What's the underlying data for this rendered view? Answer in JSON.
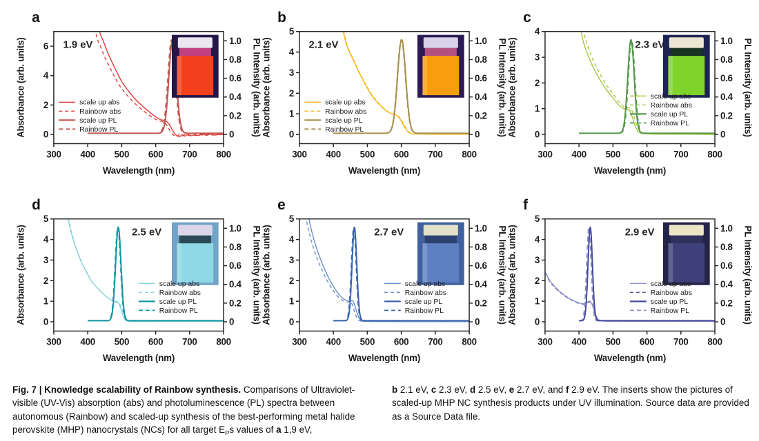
{
  "figure": {
    "axis": {
      "xlabel": "Wavelength (nm)",
      "ylabel_left": "Absorbance (arb. units)",
      "ylabel_right": "PL Intensity (arb. units)",
      "x_ticks": [
        300,
        400,
        500,
        600,
        700,
        800
      ],
      "x_range": [
        300,
        800
      ],
      "right_ticks": [
        "0",
        "0.2",
        "0.4",
        "0.6",
        "0.8",
        "1.0"
      ],
      "right_axis_max": 1.1
    },
    "legend_labels": [
      "scale up abs",
      "Rainbow abs",
      "scale up PL",
      "Rainbow PL"
    ],
    "legend_presets": {
      "lower-left": {
        "x": 0.03,
        "rows": [
          0.63,
          0.71,
          0.79,
          0.87
        ]
      },
      "mid-right": {
        "x": 0.5,
        "rows": [
          0.575,
          0.655,
          0.735,
          0.815
        ]
      }
    }
  },
  "chart_data": [
    {
      "panel": "a",
      "type": "line",
      "energy_label": "1.9 eV",
      "energy_x": 0.055,
      "legend_pos": "lower-left",
      "ymax_left": 7,
      "left_ticks": [
        0,
        2,
        4,
        6
      ],
      "series_names": [
        "scale up abs",
        "Rainbow abs",
        "scale up PL",
        "Rainbow PL"
      ],
      "pl_peak_nm": 650,
      "pl_sigma_nm": 11,
      "pl_amp": 1.0,
      "rainbow_pl_shift_nm": -3,
      "abs_points": [
        [
          400,
          13
        ],
        [
          420,
          9.5
        ],
        [
          433,
          7.2
        ],
        [
          445,
          6.4
        ],
        [
          460,
          5.5
        ],
        [
          480,
          4.5
        ],
        [
          500,
          3.6
        ],
        [
          520,
          2.95
        ],
        [
          540,
          2.4
        ],
        [
          560,
          1.95
        ],
        [
          580,
          1.55
        ],
        [
          600,
          1.2
        ],
        [
          615,
          1.0
        ],
        [
          628,
          0.93
        ],
        [
          638,
          0.75
        ],
        [
          648,
          0.35
        ],
        [
          656,
          0.05
        ],
        [
          665,
          -0.12
        ],
        [
          672,
          -0.14
        ],
        [
          678,
          -0.02
        ],
        [
          686,
          -0.12
        ],
        [
          695,
          -0.01
        ],
        [
          705,
          -0.09
        ],
        [
          715,
          -0.01
        ],
        [
          725,
          -0.08
        ],
        [
          738,
          0.01
        ],
        [
          750,
          -0.06
        ],
        [
          762,
          0.02
        ],
        [
          775,
          -0.05
        ],
        [
          788,
          0.02
        ],
        [
          800,
          -0.03
        ]
      ],
      "rainbow_abs": {
        "dx": -8,
        "scale": 0.94
      },
      "colors": {
        "abs": "#df3a36",
        "pl": "#c4564f"
      },
      "vial": {
        "bg": "#241645",
        "cap": "#eae7f0",
        "neck": "#c23f80",
        "liquid": "#f2411c"
      }
    },
    {
      "panel": "b",
      "type": "line",
      "energy_label": "2.1 eV",
      "energy_x": 0.055,
      "legend_pos": "lower-left",
      "ymax_left": 5,
      "left_ticks": [
        0,
        1,
        2,
        3,
        4,
        5
      ],
      "series_names": [
        "scale up abs",
        "Rainbow abs",
        "scale up PL",
        "Rainbow PL"
      ],
      "pl_peak_nm": 601,
      "pl_sigma_nm": 12,
      "pl_amp": 1.0,
      "rainbow_pl_shift_nm": -1,
      "abs_points": [
        [
          400,
          9
        ],
        [
          415,
          6.5
        ],
        [
          428,
          5.1
        ],
        [
          440,
          4.3
        ],
        [
          455,
          3.75
        ],
        [
          470,
          3.2
        ],
        [
          485,
          2.7
        ],
        [
          500,
          2.25
        ],
        [
          515,
          1.85
        ],
        [
          530,
          1.55
        ],
        [
          545,
          1.3
        ],
        [
          558,
          1.12
        ],
        [
          570,
          1.02
        ],
        [
          582,
          0.96
        ],
        [
          592,
          0.85
        ],
        [
          600,
          0.65
        ],
        [
          610,
          0.35
        ],
        [
          620,
          0.12
        ],
        [
          630,
          0.04
        ],
        [
          650,
          0.02
        ],
        [
          700,
          0.01
        ],
        [
          800,
          0.01
        ]
      ],
      "rainbow_abs": {
        "dx": 2,
        "scale": 0.99
      },
      "colors": {
        "abs": "#f5b60f",
        "pl": "#a7904e"
      },
      "vial": {
        "bg": "#2c1a55",
        "cap": "#d8d1e8",
        "neck": "#b2517f",
        "liquid": "#f89d0c"
      }
    },
    {
      "panel": "c",
      "type": "line",
      "energy_label": "2.3 eV",
      "energy_x": 0.53,
      "legend_pos": "mid-right",
      "ymax_left": 4,
      "left_ticks": [
        0,
        1,
        2,
        3,
        4
      ],
      "series_names": [
        "scale up abs",
        "Rainbow abs",
        "scale up PL",
        "Rainbow PL"
      ],
      "pl_peak_nm": 553,
      "pl_sigma_nm": 9.5,
      "pl_amp": 1.0,
      "rainbow_pl_shift_nm": 2,
      "abs_points": [
        [
          400,
          4.6
        ],
        [
          410,
          3.75
        ],
        [
          420,
          3.3
        ],
        [
          435,
          2.8
        ],
        [
          450,
          2.4
        ],
        [
          465,
          2.05
        ],
        [
          480,
          1.75
        ],
        [
          495,
          1.5
        ],
        [
          510,
          1.25
        ],
        [
          522,
          1.08
        ],
        [
          532,
          1.0
        ],
        [
          542,
          0.99
        ],
        [
          550,
          0.9
        ],
        [
          558,
          0.62
        ],
        [
          566,
          0.3
        ],
        [
          574,
          0.12
        ],
        [
          582,
          0.05
        ],
        [
          600,
          0.02
        ],
        [
          700,
          0.01
        ],
        [
          800,
          0.0
        ]
      ],
      "rainbow_abs": {
        "dx": 5,
        "scale": 1.05
      },
      "colors": {
        "abs": "#a4c43e",
        "pl": "#55984c"
      },
      "vial": {
        "bg": "#1e2452",
        "cap": "#ece6d3",
        "neck": "#173321",
        "liquid": "#7fd32b"
      }
    },
    {
      "panel": "d",
      "type": "line",
      "energy_label": "2.5 eV",
      "energy_x": 0.46,
      "legend_pos": "mid-right",
      "ymax_left": 5,
      "left_ticks": [
        0,
        1,
        2,
        3,
        4,
        5
      ],
      "series_names": [
        "scale up abs",
        "Rainbow abs",
        "scale up PL",
        "Rainbow PL"
      ],
      "pl_peak_nm": 490,
      "pl_sigma_nm": 8,
      "pl_amp": 1.0,
      "rainbow_pl_shift_nm": -1.5,
      "abs_points": [
        [
          330,
          6.5
        ],
        [
          340,
          5.2
        ],
        [
          352,
          4.3
        ],
        [
          365,
          3.6
        ],
        [
          380,
          2.95
        ],
        [
          395,
          2.45
        ],
        [
          410,
          2.0
        ],
        [
          425,
          1.7
        ],
        [
          440,
          1.45
        ],
        [
          455,
          1.22
        ],
        [
          468,
          1.08
        ],
        [
          478,
          1.0
        ],
        [
          487,
          0.98
        ],
        [
          495,
          0.75
        ],
        [
          503,
          0.35
        ],
        [
          510,
          0.12
        ],
        [
          518,
          0.04
        ],
        [
          540,
          0.02
        ],
        [
          600,
          0.02
        ],
        [
          700,
          0.02
        ],
        [
          800,
          0.02
        ]
      ],
      "rainbow_abs": {
        "dx": 4,
        "scale": 0.96
      },
      "colors": {
        "abs": "#8bd3db",
        "pl": "#0f98a1"
      },
      "vial": {
        "bg": "#70a3c6",
        "cap": "#dcd5ea",
        "neck": "#2a4a57",
        "liquid": "#8ed9e5"
      }
    },
    {
      "panel": "e",
      "type": "line",
      "energy_label": "2.7 eV",
      "energy_x": 0.44,
      "legend_pos": "mid-right",
      "ymax_left": 5,
      "left_ticks": [
        0,
        1,
        2,
        3,
        4,
        5
      ],
      "series_names": [
        "scale up abs",
        "Rainbow abs",
        "scale up PL",
        "Rainbow PL"
      ],
      "pl_peak_nm": 462,
      "pl_sigma_nm": 7,
      "pl_amp": 1.0,
      "rainbow_pl_shift_nm": -2,
      "abs_points": [
        [
          318,
          6
        ],
        [
          327,
          5.1
        ],
        [
          338,
          4.3
        ],
        [
          350,
          3.6
        ],
        [
          363,
          3.0
        ],
        [
          377,
          2.45
        ],
        [
          392,
          1.95
        ],
        [
          405,
          1.6
        ],
        [
          418,
          1.3
        ],
        [
          430,
          1.12
        ],
        [
          441,
          1.02
        ],
        [
          450,
          1.0
        ],
        [
          457,
          1.03
        ],
        [
          463,
          0.8
        ],
        [
          470,
          0.42
        ],
        [
          477,
          0.15
        ],
        [
          484,
          0.05
        ],
        [
          500,
          0.02
        ],
        [
          600,
          0.01
        ],
        [
          800,
          0.01
        ]
      ],
      "rainbow_abs": {
        "dx": -6,
        "scale": 0.96
      },
      "colors": {
        "abs": "#6a8eca",
        "pl": "#3a64ae"
      },
      "vial": {
        "bg": "#40619f",
        "cap": "#e3e0ca",
        "neck": "#2d4170",
        "liquid": "#5e80c2"
      }
    },
    {
      "panel": "f",
      "type": "line",
      "energy_label": "2.9 eV",
      "energy_x": 0.47,
      "legend_pos": "mid-right",
      "ymax_left": 5,
      "left_ticks": [
        0,
        1,
        2,
        3,
        4,
        5
      ],
      "series_names": [
        "scale up abs",
        "Rainbow abs",
        "scale up PL",
        "Rainbow PL"
      ],
      "pl_peak_nm": 433,
      "pl_sigma_nm": 6.5,
      "pl_amp": 1.0,
      "rainbow_pl_shift_nm": -4,
      "abs_points": [
        [
          300,
          2.45
        ],
        [
          312,
          2.05
        ],
        [
          325,
          1.78
        ],
        [
          340,
          1.52
        ],
        [
          355,
          1.32
        ],
        [
          370,
          1.15
        ],
        [
          385,
          1.02
        ],
        [
          398,
          0.93
        ],
        [
          408,
          0.89
        ],
        [
          418,
          0.9
        ],
        [
          426,
          0.97
        ],
        [
          433,
          1.0
        ],
        [
          440,
          0.78
        ],
        [
          447,
          0.4
        ],
        [
          454,
          0.16
        ],
        [
          462,
          0.07
        ],
        [
          472,
          0.04
        ],
        [
          500,
          0.03
        ],
        [
          600,
          0.02
        ],
        [
          800,
          0.02
        ]
      ],
      "rainbow_abs": {
        "dx": 1,
        "scale": 0.97
      },
      "colors": {
        "abs": "#8e91cb",
        "pl": "#45489d",
        "abs_dash": "#4f52a0",
        "pl_dash": "#8b8ec9"
      },
      "vial": {
        "bg": "#252348",
        "cap": "#ece5c6",
        "neck": "#31315e",
        "liquid": "#3d4079"
      }
    }
  ],
  "caption": {
    "col1_segments": [
      {
        "text": "Fig. 7 | Knowledge scalability of Rainbow synthesis. ",
        "bold": true
      },
      {
        "text": "Comparisons of Ultraviolet-visible (UV-Vis) absorption (abs) and photoluminescence (PL) spectra between autonomous (Rainbow) and scaled-up synthesis of the best-performing metal halide perovskite (MHP) nanocrystals (NCs) for all target E",
        "bold": false
      },
      {
        "text": "P",
        "bold": false,
        "sub": true
      },
      {
        "text": "s values of ",
        "bold": false
      },
      {
        "text": "a",
        "bold": true
      },
      {
        "text": " 1,9 eV,",
        "bold": false
      }
    ],
    "col2_segments": [
      {
        "text": "b",
        "bold": true
      },
      {
        "text": " 2.1 eV, ",
        "bold": false
      },
      {
        "text": "c",
        "bold": true
      },
      {
        "text": " 2.3 eV, ",
        "bold": false
      },
      {
        "text": "d",
        "bold": true
      },
      {
        "text": " 2.5 eV, ",
        "bold": false
      },
      {
        "text": "e",
        "bold": true
      },
      {
        "text": " 2.7 eV, and ",
        "bold": false
      },
      {
        "text": "f",
        "bold": true
      },
      {
        "text": " 2.9 eV. The inserts show the pictures of scaled-up MHP NC synthesis products under UV illumination. Source data are provided as a Source Data file.",
        "bold": false
      }
    ]
  }
}
